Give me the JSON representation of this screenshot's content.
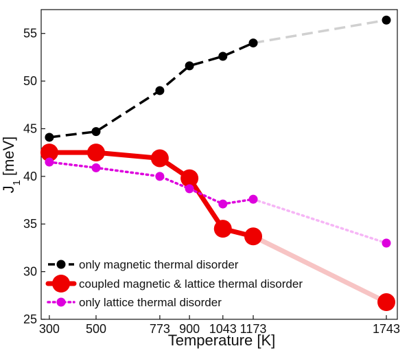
{
  "chart_data": {
    "type": "line",
    "xlabel": "Temperature [K]",
    "ylabel_main": "J",
    "ylabel_sub": "1",
    "ylabel_unit": "[meV]",
    "x_ticks": [
      300,
      500,
      773,
      900,
      1043,
      1173,
      1743
    ],
    "y_ticks": [
      25,
      30,
      35,
      40,
      45,
      50,
      55
    ],
    "xlim": [
      265,
      1790
    ],
    "ylim": [
      25,
      57.5
    ],
    "grid": false,
    "legend_position": "bottom-left",
    "series": [
      {
        "name": "only magnetic thermal disorder",
        "style": "dashed",
        "color": "#000000",
        "faded_color": "#d0d0d0",
        "marker": "small",
        "x": [
          300,
          500,
          773,
          900,
          1043,
          1173,
          1743
        ],
        "y": [
          44.1,
          44.7,
          49.0,
          51.6,
          52.6,
          54.0,
          56.4
        ]
      },
      {
        "name": "coupled magnetic & lattice thermal disorder",
        "style": "solid",
        "color": "#ee0000",
        "faded_color": "#f7c4c4",
        "marker": "large",
        "x": [
          300,
          500,
          773,
          900,
          1043,
          1173,
          1743
        ],
        "y": [
          42.5,
          42.5,
          41.9,
          39.8,
          34.5,
          33.7,
          26.8
        ]
      },
      {
        "name": "only lattice thermal disorder",
        "style": "dotted",
        "color": "#dd00dd",
        "faded_color": "#f6b6f6",
        "marker": "small",
        "x": [
          300,
          500,
          773,
          900,
          1043,
          1173,
          1743
        ],
        "y": [
          41.5,
          40.9,
          40.0,
          38.7,
          37.1,
          37.6,
          33.0
        ]
      }
    ]
  }
}
